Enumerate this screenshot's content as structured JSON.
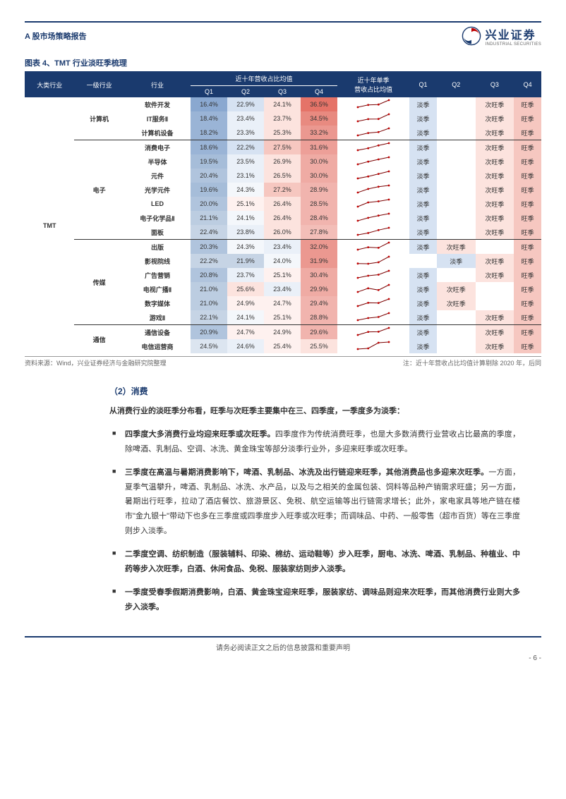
{
  "doc": {
    "header_title": "A 股市场策略报告",
    "logo_cn": "兴业证券",
    "logo_en": "INDUSTRIAL SECURITIES",
    "footer_disclaimer": "请务必阅读正文之后的信息披露和重要声明",
    "page_number": "- 6 -"
  },
  "chart4": {
    "title": "图表 4、TMT 行业淡旺季梳理",
    "columns": {
      "c0": "大类行业",
      "c1": "一级行业",
      "c2": "行业",
      "grp_revenue": "近十年营收占比均值",
      "q1": "Q1",
      "q2": "Q2",
      "q3": "Q3",
      "q4": "Q4",
      "spark": "近十年单季\n营收占比均值",
      "s_q1": "Q1",
      "s_q2": "Q2",
      "s_q3": "Q3",
      "s_q4": "Q4"
    },
    "source_left": "资料来源：Wind，兴业证券经济与金融研究院整理",
    "source_right": "注：近十年营收占比均值计算剔除 2020 年，后同",
    "colors": {
      "header_bg": "#1a3a6e",
      "header_fg": "#ffffff",
      "season_peak": "#f6c7c0",
      "season_sub_peak": "#fce3de",
      "season_off": "#d6e2f2",
      "season_sub_off": "#eaf0f8",
      "spark_line": "#7a0000",
      "spark_dot": "#c00000"
    },
    "groups": [
      {
        "big": "TMT",
        "subs": [
          {
            "l1": "计算机",
            "rows": [
              {
                "name": "软件开发",
                "q": [
                  "16.4%",
                  "22.9%",
                  "24.1%",
                  "36.5%"
                ],
                "qc": [
                  "#8aa8d0",
                  "#d6e2f2",
                  "#fce3de",
                  "#e57368"
                ],
                "s": [
                  "淡季",
                  "",
                  "次旺季",
                  "旺季"
                ],
                "sc": [
                  "#d6e2f2",
                  "",
                  "#fce3de",
                  "#f6c7c0"
                ],
                "sp": [
                  16.4,
                  22.9,
                  24.1,
                  36.5
                ]
              },
              {
                "name": "IT服务Ⅱ",
                "q": [
                  "18.4%",
                  "23.4%",
                  "23.7%",
                  "34.5%"
                ],
                "qc": [
                  "#9ab4d6",
                  "#eaf0f8",
                  "#fce3de",
                  "#e88a80"
                ],
                "s": [
                  "淡季",
                  "",
                  "次旺季",
                  "旺季"
                ],
                "sc": [
                  "#d6e2f2",
                  "",
                  "#fce3de",
                  "#f6c7c0"
                ],
                "sp": [
                  18.4,
                  23.4,
                  23.7,
                  34.5
                ]
              },
              {
                "name": "计算机设备",
                "q": [
                  "18.2%",
                  "23.3%",
                  "25.3%",
                  "33.2%"
                ],
                "qc": [
                  "#9ab4d6",
                  "#eaf0f8",
                  "#fce3de",
                  "#eb9890"
                ],
                "s": [
                  "淡季",
                  "",
                  "次旺季",
                  "旺季"
                ],
                "sc": [
                  "#d6e2f2",
                  "",
                  "#fce3de",
                  "#f6c7c0"
                ],
                "sp": [
                  18.2,
                  23.3,
                  25.3,
                  33.2
                ]
              }
            ]
          },
          {
            "l1": "电子",
            "rows": [
              {
                "name": "消费电子",
                "q": [
                  "18.6%",
                  "22.2%",
                  "27.5%",
                  "31.6%"
                ],
                "qc": [
                  "#9ab4d6",
                  "#d6e2f2",
                  "#f6c7c0",
                  "#ed9f98"
                ],
                "s": [
                  "淡季",
                  "",
                  "次旺季",
                  "旺季"
                ],
                "sc": [
                  "#d6e2f2",
                  "",
                  "#fce3de",
                  "#f6c7c0"
                ],
                "sp": [
                  18.6,
                  22.2,
                  27.5,
                  31.6
                ]
              },
              {
                "name": "半导体",
                "q": [
                  "19.5%",
                  "23.5%",
                  "26.9%",
                  "30.0%"
                ],
                "qc": [
                  "#a6bdd9",
                  "#eaf0f8",
                  "#fce3de",
                  "#efaba4"
                ],
                "s": [
                  "淡季",
                  "",
                  "次旺季",
                  "旺季"
                ],
                "sc": [
                  "#d6e2f2",
                  "",
                  "#fce3de",
                  "#f6c7c0"
                ],
                "sp": [
                  19.5,
                  23.5,
                  26.9,
                  30.0
                ]
              },
              {
                "name": "元件",
                "q": [
                  "20.4%",
                  "23.1%",
                  "26.5%",
                  "30.0%"
                ],
                "qc": [
                  "#b0c4dd",
                  "#eaf0f8",
                  "#fce3de",
                  "#efaba4"
                ],
                "s": [
                  "淡季",
                  "",
                  "次旺季",
                  "旺季"
                ],
                "sc": [
                  "#d6e2f2",
                  "",
                  "#fce3de",
                  "#f6c7c0"
                ],
                "sp": [
                  20.4,
                  23.1,
                  26.5,
                  30.0
                ]
              },
              {
                "name": "光学元件",
                "q": [
                  "19.6%",
                  "24.3%",
                  "27.2%",
                  "28.9%"
                ],
                "qc": [
                  "#a6bdd9",
                  "#f4f7fb",
                  "#f6c7c0",
                  "#f1b4ae"
                ],
                "s": [
                  "淡季",
                  "",
                  "次旺季",
                  "旺季"
                ],
                "sc": [
                  "#d6e2f2",
                  "",
                  "#fce3de",
                  "#f6c7c0"
                ],
                "sp": [
                  19.6,
                  24.3,
                  27.2,
                  28.9
                ]
              },
              {
                "name": "LED",
                "q": [
                  "20.0%",
                  "25.1%",
                  "26.4%",
                  "28.5%"
                ],
                "qc": [
                  "#b0c4dd",
                  "#fef1ef",
                  "#fce3de",
                  "#f1b4ae"
                ],
                "s": [
                  "淡季",
                  "",
                  "次旺季",
                  "旺季"
                ],
                "sc": [
                  "#d6e2f2",
                  "",
                  "#fce3de",
                  "#f6c7c0"
                ],
                "sp": [
                  20.0,
                  25.1,
                  26.4,
                  28.5
                ]
              },
              {
                "name": "电子化学品Ⅱ",
                "q": [
                  "21.1%",
                  "24.1%",
                  "26.4%",
                  "28.4%"
                ],
                "qc": [
                  "#bccde1",
                  "#f4f7fb",
                  "#fce3de",
                  "#f1b4ae"
                ],
                "s": [
                  "淡季",
                  "",
                  "次旺季",
                  "旺季"
                ],
                "sc": [
                  "#d6e2f2",
                  "",
                  "#fce3de",
                  "#f6c7c0"
                ],
                "sp": [
                  21.1,
                  24.1,
                  26.4,
                  28.4
                ]
              },
              {
                "name": "面板",
                "q": [
                  "22.4%",
                  "23.8%",
                  "26.0%",
                  "27.8%"
                ],
                "qc": [
                  "#c6d4e5",
                  "#eaf0f8",
                  "#fce3de",
                  "#f3beb8"
                ],
                "s": [
                  "淡季",
                  "",
                  "次旺季",
                  "旺季"
                ],
                "sc": [
                  "#d6e2f2",
                  "",
                  "#fce3de",
                  "#f6c7c0"
                ],
                "sp": [
                  22.4,
                  23.8,
                  26.0,
                  27.8
                ]
              }
            ]
          },
          {
            "l1": "传媒",
            "rows": [
              {
                "name": "出版",
                "q": [
                  "20.3%",
                  "24.3%",
                  "23.4%",
                  "32.0%"
                ],
                "qc": [
                  "#b0c4dd",
                  "#f4f7fb",
                  "#eaf0f8",
                  "#eb9890"
                ],
                "s": [
                  "淡季",
                  "次旺季",
                  "",
                  "旺季"
                ],
                "sc": [
                  "#d6e2f2",
                  "#fce3de",
                  "",
                  "#f6c7c0"
                ],
                "sp": [
                  20.3,
                  24.3,
                  23.4,
                  32.0
                ]
              },
              {
                "name": "影视院线",
                "q": [
                  "22.2%",
                  "21.9%",
                  "24.0%",
                  "31.9%"
                ],
                "qc": [
                  "#c6d4e5",
                  "#c6d4e5",
                  "#f4f7fb",
                  "#eb9890"
                ],
                "s": [
                  "",
                  "淡季",
                  "次旺季",
                  "旺季"
                ],
                "sc": [
                  "",
                  "#d6e2f2",
                  "#fce3de",
                  "#f6c7c0"
                ],
                "sp": [
                  22.2,
                  21.9,
                  24.0,
                  31.9
                ]
              },
              {
                "name": "广告营销",
                "q": [
                  "20.8%",
                  "23.7%",
                  "25.1%",
                  "30.4%"
                ],
                "qc": [
                  "#b0c4dd",
                  "#eaf0f8",
                  "#fef1ef",
                  "#efaba4"
                ],
                "s": [
                  "淡季",
                  "",
                  "次旺季",
                  "旺季"
                ],
                "sc": [
                  "#d6e2f2",
                  "",
                  "#fce3de",
                  "#f6c7c0"
                ],
                "sp": [
                  20.8,
                  23.7,
                  25.1,
                  30.4
                ]
              },
              {
                "name": "电视广播Ⅱ",
                "q": [
                  "21.0%",
                  "25.6%",
                  "23.4%",
                  "29.9%"
                ],
                "qc": [
                  "#bccde1",
                  "#fce3de",
                  "#eaf0f8",
                  "#efaba4"
                ],
                "s": [
                  "淡季",
                  "次旺季",
                  "",
                  "旺季"
                ],
                "sc": [
                  "#d6e2f2",
                  "#fce3de",
                  "",
                  "#f6c7c0"
                ],
                "sp": [
                  21.0,
                  25.6,
                  23.4,
                  29.9
                ]
              },
              {
                "name": "数字媒体",
                "q": [
                  "21.0%",
                  "24.9%",
                  "24.7%",
                  "29.4%"
                ],
                "qc": [
                  "#bccde1",
                  "#fef1ef",
                  "#fef1ef",
                  "#f1b4ae"
                ],
                "s": [
                  "淡季",
                  "次旺季",
                  "",
                  "旺季"
                ],
                "sc": [
                  "#d6e2f2",
                  "#fce3de",
                  "",
                  "#f6c7c0"
                ],
                "sp": [
                  21.0,
                  24.9,
                  24.7,
                  29.4
                ]
              },
              {
                "name": "游戏Ⅱ",
                "q": [
                  "22.1%",
                  "24.1%",
                  "25.1%",
                  "28.8%"
                ],
                "qc": [
                  "#c6d4e5",
                  "#f4f7fb",
                  "#fef1ef",
                  "#f1b4ae"
                ],
                "s": [
                  "淡季",
                  "",
                  "次旺季",
                  "旺季"
                ],
                "sc": [
                  "#d6e2f2",
                  "",
                  "#fce3de",
                  "#f6c7c0"
                ],
                "sp": [
                  22.1,
                  24.1,
                  25.1,
                  28.8
                ]
              }
            ]
          },
          {
            "l1": "通信",
            "rows": [
              {
                "name": "通信设备",
                "q": [
                  "20.9%",
                  "24.7%",
                  "24.9%",
                  "29.6%"
                ],
                "qc": [
                  "#b0c4dd",
                  "#fef1ef",
                  "#fef1ef",
                  "#f1b4ae"
                ],
                "s": [
                  "淡季",
                  "",
                  "次旺季",
                  "旺季"
                ],
                "sc": [
                  "#d6e2f2",
                  "",
                  "#fce3de",
                  "#f6c7c0"
                ],
                "sp": [
                  20.9,
                  24.7,
                  24.9,
                  29.6
                ]
              },
              {
                "name": "电信运营商",
                "q": [
                  "24.5%",
                  "24.6%",
                  "25.4%",
                  "25.5%"
                ],
                "qc": [
                  "#dce5f0",
                  "#eaf0f8",
                  "#fef1ef",
                  "#fce3de"
                ],
                "s": [
                  "淡季",
                  "",
                  "次旺季",
                  "旺季"
                ],
                "sc": [
                  "#d6e2f2",
                  "",
                  "#fce3de",
                  "#f6c7c0"
                ],
                "sp": [
                  24.5,
                  24.6,
                  25.4,
                  25.5
                ]
              }
            ]
          }
        ]
      }
    ]
  },
  "section": {
    "heading": "（2）消费",
    "lead": "从消费行业的淡旺季分布看，旺季与次旺季主要集中在三、四季度，一季度多为淡季：",
    "bullets": [
      {
        "b": "四季度大多消费行业均迎来旺季或次旺季。",
        "t": "四季度作为传统消费旺季，也是大多数消费行业营收占比最高的季度，除啤酒、乳制品、空调、冰洗、黄金珠宝等部分淡季行业外，多迎来旺季或次旺季。"
      },
      {
        "b": "三季度在高温与暑期消费影响下，啤酒、乳制品、冰洗及出行链迎来旺季，其他消费品也多迎来次旺季。",
        "t": "一方面，夏季气温攀升，啤酒、乳制品、冰洗、水产品，以及与之相关的金属包装、饲料等品种产销需求旺盛；另一方面，暑期出行旺季，拉动了酒店餐饮、旅游景区、免税、航空运输等出行链需求增长；此外，家电家具等地产链在楼市\"金九银十\"带动下也多在三季度或四季度步入旺季或次旺季；而调味品、中药、一般零售（超市百货）等在三季度则步入淡季。"
      },
      {
        "b": "二季度空调、纺织制造（服装辅料、印染、棉纺、运动鞋等）步入旺季，厨电、冰洗、啤酒、乳制品、种植业、中药等步入次旺季，白酒、休闲食品、免税、服装家纺则步入淡季。",
        "t": ""
      },
      {
        "b": "一季度受春季假期消费影响，白酒、黄金珠宝迎来旺季，服装家纺、调味品则迎来次旺季，而其他消费行业则大多步入淡季。",
        "t": ""
      }
    ]
  }
}
